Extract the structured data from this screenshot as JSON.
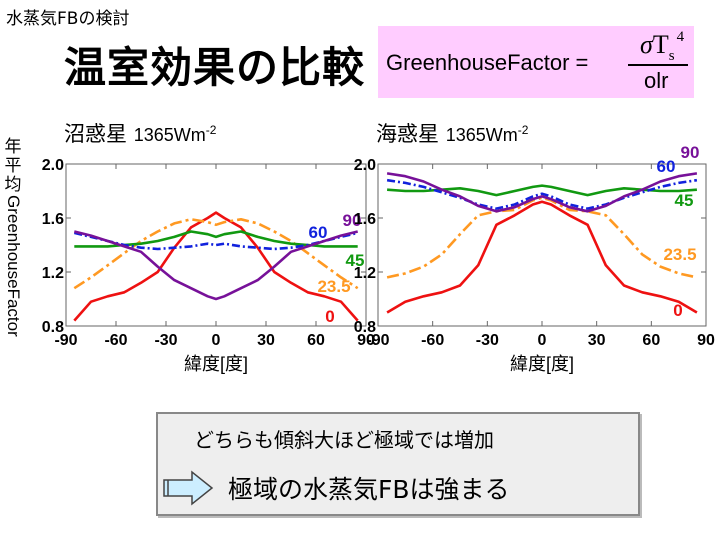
{
  "header": {
    "small_title": "水蒸気FBの検討",
    "main_title": "温室効果の比較"
  },
  "formula": {
    "lhs": "GreenhouseFactor =",
    "numerator_sigma": "σ",
    "numerator_T": "T",
    "numerator_sub": "s",
    "numerator_sup": "4",
    "denominator": "olr",
    "background": "#ffccff"
  },
  "ylabel": {
    "chars": [
      "年",
      "平",
      "均"
    ],
    "rotated": "GreenhouseFactor"
  },
  "chart_data": [
    {
      "type": "line",
      "title": "沼惑星",
      "subtitle": "1365Wm",
      "subtitle_exp": "-2",
      "xlabel": "緯度[度]",
      "ylabel": "年平均GreenhouseFactor",
      "xlim": [
        -90,
        90
      ],
      "ylim": [
        0.8,
        2.0
      ],
      "xticks": [
        -90,
        -60,
        -30,
        0,
        30,
        60,
        90
      ],
      "yticks": [
        0.8,
        1.2,
        1.6,
        2.0
      ],
      "ytick_labels": [
        "0.8",
        "1.2",
        "1.6",
        "2.0"
      ],
      "x": [
        -85,
        -75,
        -65,
        -55,
        -45,
        -35,
        -25,
        -15,
        -5,
        0,
        5,
        15,
        25,
        35,
        45,
        55,
        65,
        75,
        85
      ],
      "series": [
        {
          "name": "0",
          "color": "#ee1111",
          "dash": "",
          "values": [
            0.84,
            0.98,
            1.02,
            1.05,
            1.12,
            1.2,
            1.38,
            1.53,
            1.6,
            1.64,
            1.6,
            1.53,
            1.38,
            1.2,
            1.12,
            1.05,
            1.02,
            0.98,
            0.84
          ]
        },
        {
          "name": "23.5",
          "color": "#ff9922",
          "dash": "12 4 3 4",
          "values": [
            1.08,
            1.16,
            1.25,
            1.34,
            1.43,
            1.5,
            1.56,
            1.59,
            1.57,
            1.55,
            1.57,
            1.59,
            1.56,
            1.5,
            1.43,
            1.34,
            1.25,
            1.16,
            1.08
          ]
        },
        {
          "name": "45",
          "color": "#119911",
          "dash": "",
          "values": [
            1.39,
            1.39,
            1.39,
            1.4,
            1.41,
            1.43,
            1.46,
            1.5,
            1.48,
            1.46,
            1.48,
            1.5,
            1.46,
            1.43,
            1.41,
            1.4,
            1.39,
            1.39,
            1.39
          ]
        },
        {
          "name": "60",
          "color": "#1122dd",
          "dash": "8 3 2 3",
          "values": [
            1.49,
            1.46,
            1.43,
            1.4,
            1.38,
            1.37,
            1.38,
            1.39,
            1.41,
            1.4,
            1.41,
            1.39,
            1.38,
            1.37,
            1.38,
            1.4,
            1.43,
            1.46,
            1.49
          ]
        },
        {
          "name": "90",
          "color": "#771199",
          "dash": "",
          "values": [
            1.5,
            1.47,
            1.43,
            1.39,
            1.35,
            1.24,
            1.14,
            1.08,
            1.02,
            1.0,
            1.02,
            1.08,
            1.14,
            1.24,
            1.35,
            1.39,
            1.43,
            1.47,
            1.5
          ]
        }
      ]
    },
    {
      "type": "line",
      "title": "海惑星",
      "subtitle": "1365Wm",
      "subtitle_exp": "-2",
      "xlabel": "緯度[度]",
      "ylabel": "年平均GreenhouseFactor",
      "xlim": [
        -90,
        90
      ],
      "ylim": [
        0.8,
        2.0
      ],
      "xticks": [
        -90,
        -60,
        -30,
        0,
        30,
        60,
        90
      ],
      "yticks": [
        0.8,
        1.2,
        1.6,
        2.0
      ],
      "ytick_labels": [
        "0.8",
        "1.2",
        "1.6",
        "2.0"
      ],
      "x": [
        -85,
        -75,
        -65,
        -55,
        -45,
        -35,
        -25,
        -15,
        -5,
        0,
        5,
        15,
        25,
        35,
        45,
        55,
        65,
        75,
        85
      ],
      "series": [
        {
          "name": "0",
          "color": "#ee1111",
          "dash": "",
          "values": [
            0.9,
            0.98,
            1.02,
            1.05,
            1.1,
            1.25,
            1.55,
            1.62,
            1.7,
            1.72,
            1.7,
            1.62,
            1.55,
            1.25,
            1.1,
            1.05,
            1.02,
            0.98,
            0.9
          ]
        },
        {
          "name": "23.5",
          "color": "#ff9922",
          "dash": "12 4 3 4",
          "values": [
            1.16,
            1.19,
            1.24,
            1.33,
            1.48,
            1.62,
            1.65,
            1.66,
            1.73,
            1.75,
            1.73,
            1.66,
            1.65,
            1.62,
            1.48,
            1.33,
            1.24,
            1.19,
            1.16
          ]
        },
        {
          "name": "45",
          "color": "#119911",
          "dash": "",
          "values": [
            1.81,
            1.8,
            1.8,
            1.81,
            1.82,
            1.8,
            1.77,
            1.8,
            1.83,
            1.84,
            1.83,
            1.8,
            1.77,
            1.8,
            1.82,
            1.81,
            1.8,
            1.8,
            1.81
          ]
        },
        {
          "name": "60",
          "color": "#1122dd",
          "dash": "8 3 2 3",
          "values": [
            1.88,
            1.86,
            1.83,
            1.79,
            1.75,
            1.7,
            1.67,
            1.7,
            1.76,
            1.78,
            1.76,
            1.7,
            1.67,
            1.7,
            1.75,
            1.79,
            1.83,
            1.86,
            1.88
          ]
        },
        {
          "name": "90",
          "color": "#771199",
          "dash": "",
          "values": [
            1.93,
            1.91,
            1.87,
            1.81,
            1.76,
            1.69,
            1.65,
            1.68,
            1.74,
            1.76,
            1.74,
            1.68,
            1.65,
            1.69,
            1.76,
            1.81,
            1.87,
            1.91,
            1.93
          ]
        }
      ]
    }
  ],
  "note": {
    "line1": "どちらも傾斜大ほど極域では増加",
    "line2": "極域の水蒸気FBは強まる",
    "arrow_icon": "right-arrow-icon"
  }
}
